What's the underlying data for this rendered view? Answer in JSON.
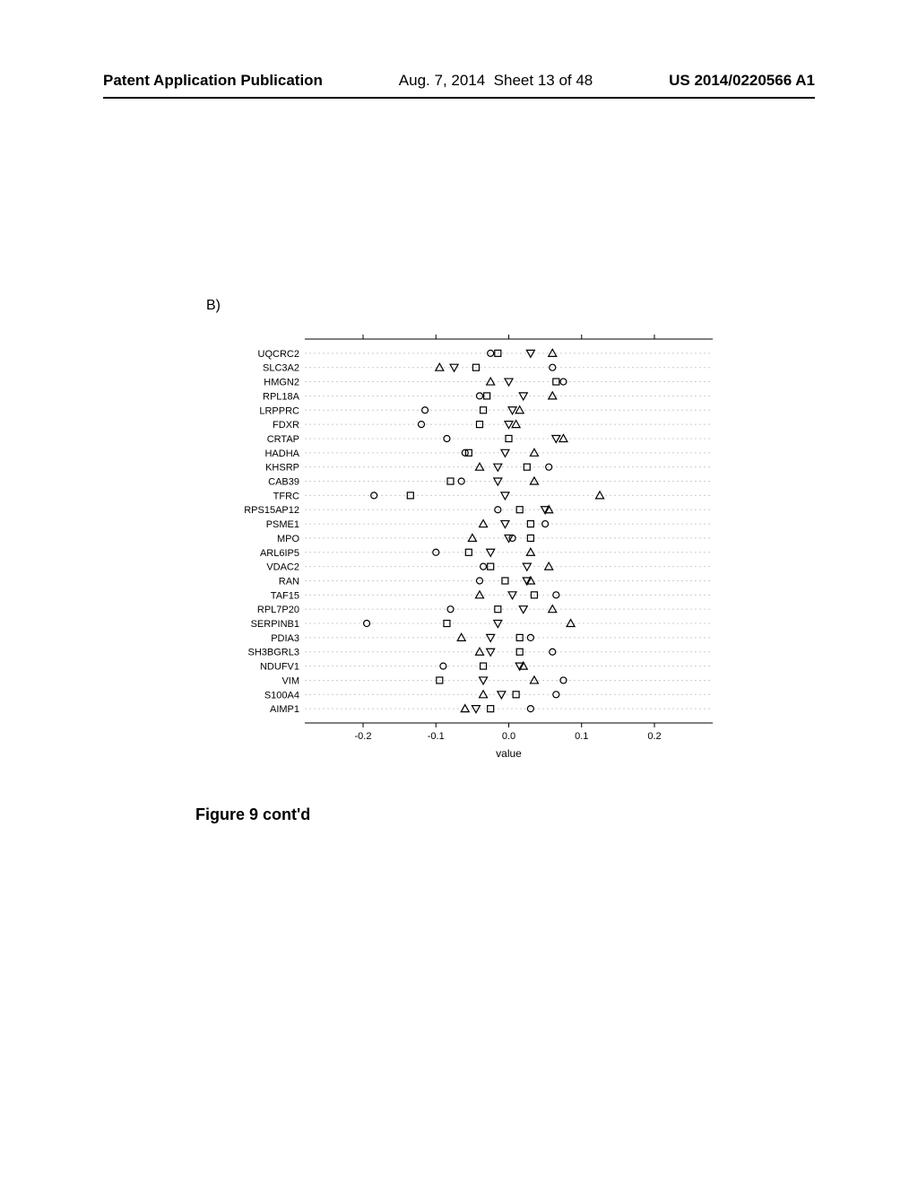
{
  "header": {
    "left": "Patent Application Publication",
    "date": "Aug. 7, 2014",
    "sheet": "Sheet 13 of 48",
    "right": "US 2014/0220566 A1"
  },
  "panel_label": "B)",
  "figure_caption": "Figure 9 cont'd",
  "chart": {
    "type": "scatter-categorical",
    "xlabel": "value",
    "xlim": [
      -0.28,
      0.28
    ],
    "xticks": [
      -0.2,
      -0.1,
      0.0,
      0.1,
      0.2
    ],
    "background_color": "#ffffff",
    "text_color": "#000000",
    "label_fontsize": 11,
    "axis_fontsize": 11,
    "grid_color": "#cccccc",
    "grid_dash": "2,3",
    "marker_size": 7,
    "marker_stroke": "#000000",
    "marker_fill": "none",
    "categories": [
      "UQCRC2",
      "SLC3A2",
      "HMGN2",
      "RPL18A",
      "LRPPRC",
      "FDXR",
      "CRTAP",
      "HADHA",
      "KHSRP",
      "CAB39",
      "TFRC",
      "RPS15AP12",
      "PSME1",
      "MPO",
      "ARL6IP5",
      "VDAC2",
      "RAN",
      "TAF15",
      "RPL7P20",
      "SERPINB1",
      "PDIA3",
      "SH3BGRL3",
      "NDUFV1",
      "VIM",
      "S100A4",
      "AIMP1"
    ],
    "series": [
      {
        "shape": "circle",
        "points": [
          {
            "c": "UQCRC2",
            "x": -0.025
          },
          {
            "c": "SLC3A2",
            "x": 0.06
          },
          {
            "c": "HMGN2",
            "x": 0.075
          },
          {
            "c": "RPL18A",
            "x": -0.04
          },
          {
            "c": "LRPPRC",
            "x": -0.115
          },
          {
            "c": "FDXR",
            "x": -0.12
          },
          {
            "c": "CRTAP",
            "x": -0.085
          },
          {
            "c": "HADHA",
            "x": -0.06
          },
          {
            "c": "KHSRP",
            "x": 0.055
          },
          {
            "c": "CAB39",
            "x": -0.065
          },
          {
            "c": "TFRC",
            "x": -0.185
          },
          {
            "c": "RPS15AP12",
            "x": -0.015
          },
          {
            "c": "PSME1",
            "x": 0.05
          },
          {
            "c": "MPO",
            "x": 0.005
          },
          {
            "c": "ARL6IP5",
            "x": -0.1
          },
          {
            "c": "VDAC2",
            "x": -0.035
          },
          {
            "c": "RAN",
            "x": -0.04
          },
          {
            "c": "TAF15",
            "x": 0.065
          },
          {
            "c": "RPL7P20",
            "x": -0.08
          },
          {
            "c": "SERPINB1",
            "x": -0.195
          },
          {
            "c": "PDIA3",
            "x": 0.03
          },
          {
            "c": "SH3BGRL3",
            "x": 0.06
          },
          {
            "c": "NDUFV1",
            "x": -0.09
          },
          {
            "c": "VIM",
            "x": 0.075
          },
          {
            "c": "S100A4",
            "x": 0.065
          },
          {
            "c": "AIMP1",
            "x": 0.03
          }
        ]
      },
      {
        "shape": "square",
        "points": [
          {
            "c": "UQCRC2",
            "x": -0.015
          },
          {
            "c": "SLC3A2",
            "x": -0.045
          },
          {
            "c": "HMGN2",
            "x": 0.065
          },
          {
            "c": "RPL18A",
            "x": -0.03
          },
          {
            "c": "LRPPRC",
            "x": -0.035
          },
          {
            "c": "FDXR",
            "x": -0.04
          },
          {
            "c": "CRTAP",
            "x": 0.0
          },
          {
            "c": "HADHA",
            "x": -0.055
          },
          {
            "c": "KHSRP",
            "x": 0.025
          },
          {
            "c": "CAB39",
            "x": -0.08
          },
          {
            "c": "TFRC",
            "x": -0.135
          },
          {
            "c": "RPS15AP12",
            "x": 0.015
          },
          {
            "c": "PSME1",
            "x": 0.03
          },
          {
            "c": "MPO",
            "x": 0.03
          },
          {
            "c": "ARL6IP5",
            "x": -0.055
          },
          {
            "c": "VDAC2",
            "x": -0.025
          },
          {
            "c": "RAN",
            "x": -0.005
          },
          {
            "c": "TAF15",
            "x": 0.035
          },
          {
            "c": "RPL7P20",
            "x": -0.015
          },
          {
            "c": "SERPINB1",
            "x": -0.085
          },
          {
            "c": "PDIA3",
            "x": 0.015
          },
          {
            "c": "SH3BGRL3",
            "x": 0.015
          },
          {
            "c": "NDUFV1",
            "x": -0.035
          },
          {
            "c": "VIM",
            "x": -0.095
          },
          {
            "c": "S100A4",
            "x": 0.01
          },
          {
            "c": "AIMP1",
            "x": -0.025
          }
        ]
      },
      {
        "shape": "triangle-down",
        "points": [
          {
            "c": "UQCRC2",
            "x": 0.03
          },
          {
            "c": "SLC3A2",
            "x": -0.075
          },
          {
            "c": "HMGN2",
            "x": 0.0
          },
          {
            "c": "RPL18A",
            "x": 0.02
          },
          {
            "c": "LRPPRC",
            "x": 0.005
          },
          {
            "c": "FDXR",
            "x": 0.0
          },
          {
            "c": "CRTAP",
            "x": 0.065
          },
          {
            "c": "HADHA",
            "x": -0.005
          },
          {
            "c": "KHSRP",
            "x": -0.015
          },
          {
            "c": "CAB39",
            "x": -0.015
          },
          {
            "c": "TFRC",
            "x": -0.005
          },
          {
            "c": "RPS15AP12",
            "x": 0.05
          },
          {
            "c": "PSME1",
            "x": -0.005
          },
          {
            "c": "MPO",
            "x": 0.0
          },
          {
            "c": "ARL6IP5",
            "x": -0.025
          },
          {
            "c": "VDAC2",
            "x": 0.025
          },
          {
            "c": "RAN",
            "x": 0.025
          },
          {
            "c": "TAF15",
            "x": 0.005
          },
          {
            "c": "RPL7P20",
            "x": 0.02
          },
          {
            "c": "SERPINB1",
            "x": -0.015
          },
          {
            "c": "PDIA3",
            "x": -0.025
          },
          {
            "c": "SH3BGRL3",
            "x": -0.025
          },
          {
            "c": "NDUFV1",
            "x": 0.015
          },
          {
            "c": "VIM",
            "x": -0.035
          },
          {
            "c": "S100A4",
            "x": -0.01
          },
          {
            "c": "AIMP1",
            "x": -0.045
          }
        ]
      },
      {
        "shape": "triangle-up",
        "points": [
          {
            "c": "UQCRC2",
            "x": 0.06
          },
          {
            "c": "SLC3A2",
            "x": -0.095
          },
          {
            "c": "HMGN2",
            "x": -0.025
          },
          {
            "c": "RPL18A",
            "x": 0.06
          },
          {
            "c": "LRPPRC",
            "x": 0.015
          },
          {
            "c": "FDXR",
            "x": 0.01
          },
          {
            "c": "CRTAP",
            "x": 0.075
          },
          {
            "c": "HADHA",
            "x": 0.035
          },
          {
            "c": "KHSRP",
            "x": -0.04
          },
          {
            "c": "CAB39",
            "x": 0.035
          },
          {
            "c": "TFRC",
            "x": 0.125
          },
          {
            "c": "RPS15AP12",
            "x": 0.055
          },
          {
            "c": "PSME1",
            "x": -0.035
          },
          {
            "c": "MPO",
            "x": -0.05
          },
          {
            "c": "ARL6IP5",
            "x": 0.03
          },
          {
            "c": "VDAC2",
            "x": 0.055
          },
          {
            "c": "RAN",
            "x": 0.03
          },
          {
            "c": "TAF15",
            "x": -0.04
          },
          {
            "c": "RPL7P20",
            "x": 0.06
          },
          {
            "c": "SERPINB1",
            "x": 0.085
          },
          {
            "c": "PDIA3",
            "x": -0.065
          },
          {
            "c": "SH3BGRL3",
            "x": -0.04
          },
          {
            "c": "NDUFV1",
            "x": 0.02
          },
          {
            "c": "VIM",
            "x": 0.035
          },
          {
            "c": "S100A4",
            "x": -0.035
          },
          {
            "c": "AIMP1",
            "x": -0.06
          }
        ]
      }
    ]
  }
}
